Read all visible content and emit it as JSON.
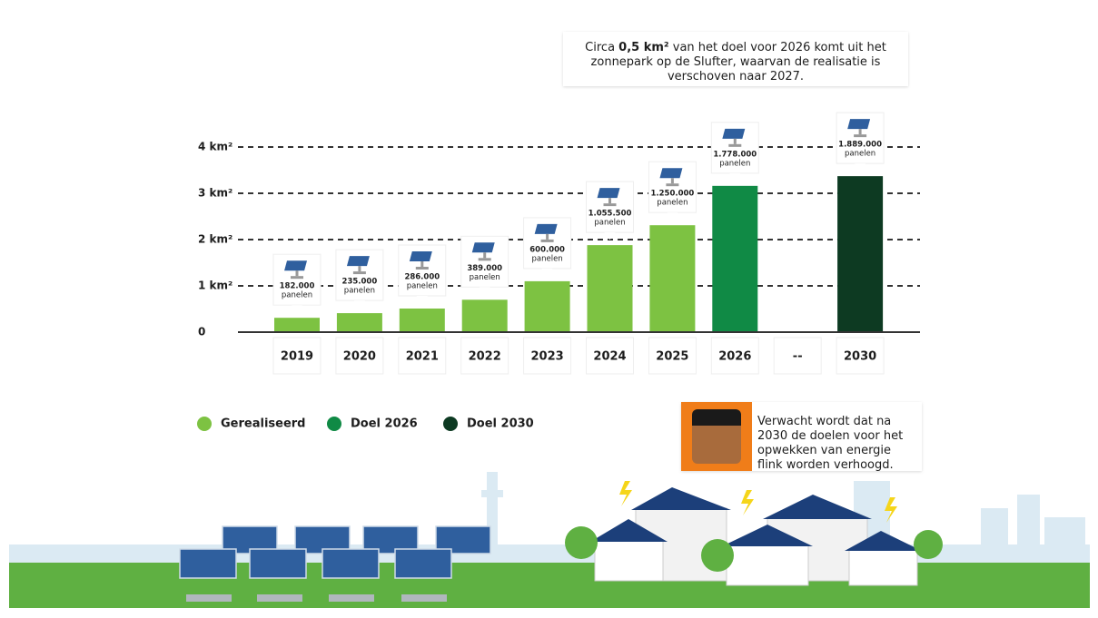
{
  "chart_data": {
    "type": "bar",
    "categories": [
      "2019",
      "2020",
      "2021",
      "2022",
      "2023",
      "2024",
      "2025",
      "2026",
      "--",
      "2030"
    ],
    "values": [
      0.31,
      0.41,
      0.51,
      0.7,
      1.1,
      1.88,
      2.31,
      3.16,
      null,
      3.37
    ],
    "colors": [
      "#7dc242",
      "#7dc242",
      "#7dc242",
      "#7dc242",
      "#7dc242",
      "#7dc242",
      "#7dc242",
      "#108a45",
      null,
      "#0d3a22"
    ],
    "panel_counts": [
      "182.000",
      "235.000",
      "286.000",
      "389.000",
      "600.000",
      "1.055.500",
      "1.250.000",
      "1.778.000",
      null,
      "1.889.000"
    ],
    "panel_unit": "panelen",
    "ylim": [
      0,
      4
    ],
    "yticks": [
      0,
      {
        "value": 1,
        "label": "1 km²"
      },
      {
        "value": 2,
        "label": "2 km²"
      },
      {
        "value": 3,
        "label": "3 km²"
      },
      {
        "value": 4,
        "label": "4 km²"
      }
    ],
    "grid": true,
    "legend": [
      {
        "name": "Gerealiseerd",
        "color": "#7dc242"
      },
      {
        "name": "Doel 2026",
        "color": "#108a45"
      },
      {
        "name": "Doel 2030",
        "color": "#0d3a22"
      }
    ],
    "annotation_top": [
      "Circa ",
      "0,5 km²",
      " van het doel voor 2026 komt uit het zonnepark op de Slufter, waarvan de realisatie is verschoven naar 2027."
    ],
    "annotation_bottom": "Verwacht wordt dat na 2030 de doelen voor het opwekken van energie flink worden verhoogd."
  }
}
